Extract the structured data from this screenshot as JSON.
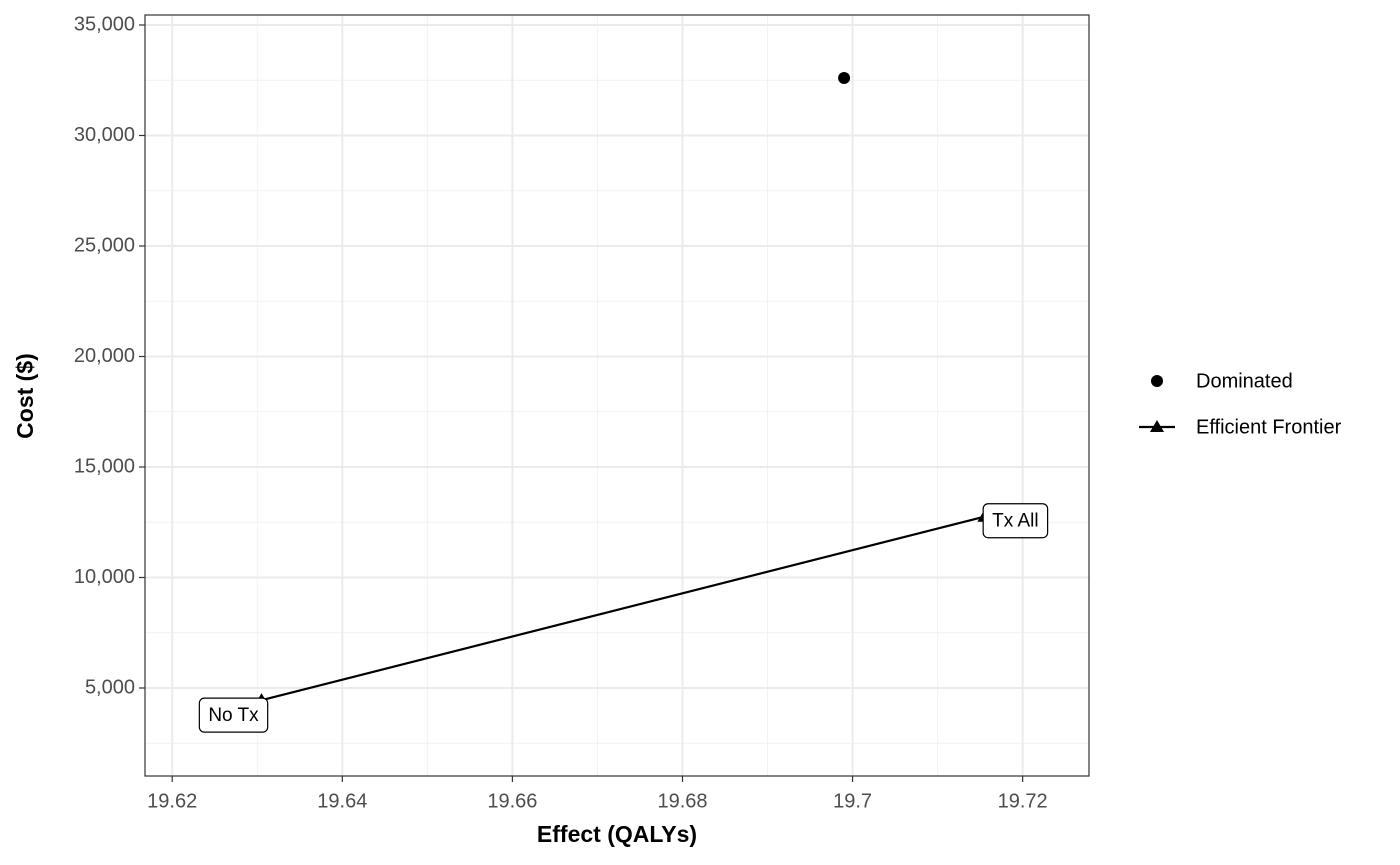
{
  "chart_data": {
    "type": "scatter",
    "xlabel": "Effect (QALYs)",
    "ylabel": "Cost ($)",
    "xlim": [
      19.6168,
      19.7278
    ],
    "ylim": [
      1018,
      35452
    ],
    "xticks": [
      19.62,
      19.64,
      19.66,
      19.68,
      19.7,
      19.72
    ],
    "yticks": [
      {
        "value": 5000,
        "label": "5,000"
      },
      {
        "value": 10000,
        "label": "10,000"
      },
      {
        "value": 15000,
        "label": "15,000"
      },
      {
        "value": 20000,
        "label": "20,000"
      },
      {
        "value": 25000,
        "label": "25,000"
      },
      {
        "value": 30000,
        "label": "30,000"
      },
      {
        "value": 35000,
        "label": "35,000"
      }
    ],
    "grid": true,
    "legend_position": "right",
    "series": [
      {
        "name": "Dominated",
        "color": "#000000",
        "marker": "circle",
        "line": false,
        "x": [
          19.699
        ],
        "values": [
          32600
        ]
      },
      {
        "name": "Efficient Frontier",
        "color": "#000000",
        "marker": "triangle",
        "line": true,
        "x": [
          19.6305,
          19.7155
        ],
        "values": [
          4450,
          12750
        ],
        "point_labels": [
          "No Tx",
          "Tx All"
        ]
      }
    ]
  }
}
